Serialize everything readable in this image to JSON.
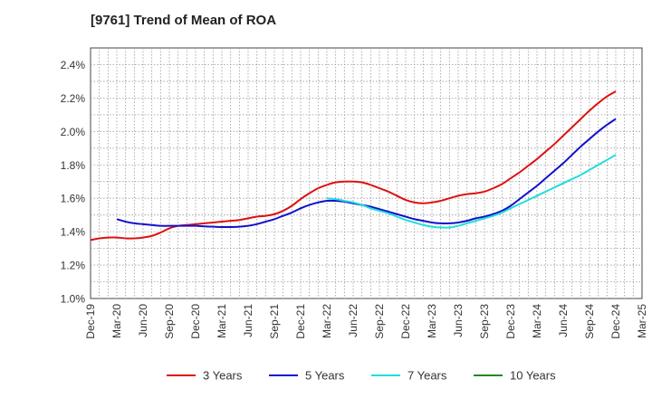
{
  "chart_data": {
    "type": "line",
    "title": "[9761]  Trend of Mean of ROA",
    "xlabel": "",
    "ylabel": "",
    "x_ticks": [
      "Dec-19",
      "Mar-20",
      "Jun-20",
      "Sep-20",
      "Dec-20",
      "Mar-21",
      "Jun-21",
      "Sep-21",
      "Dec-21",
      "Mar-22",
      "Jun-22",
      "Sep-22",
      "Dec-22",
      "Mar-23",
      "Jun-23",
      "Sep-23",
      "Dec-23",
      "Mar-24",
      "Jun-24",
      "Sep-24",
      "Dec-24",
      "Mar-25"
    ],
    "y_ticks": [
      "1.0%",
      "1.2%",
      "1.4%",
      "1.6%",
      "1.8%",
      "2.0%",
      "2.2%",
      "2.4%"
    ],
    "ylim": [
      1.0,
      2.5
    ],
    "grid": true,
    "legend_position": "bottom",
    "series": [
      {
        "name": "3 Years",
        "color": "#dd1111",
        "x": [
          "Dec-19",
          "Jan-20",
          "Feb-20",
          "Mar-20",
          "Apr-20",
          "May-20",
          "Jun-20",
          "Jul-20",
          "Aug-20",
          "Sep-20",
          "Oct-20",
          "Nov-20",
          "Dec-20",
          "Jan-21",
          "Feb-21",
          "Mar-21",
          "Apr-21",
          "May-21",
          "Jun-21",
          "Jul-21",
          "Aug-21",
          "Sep-21",
          "Oct-21",
          "Nov-21",
          "Dec-21",
          "Jan-22",
          "Feb-22",
          "Mar-22",
          "Apr-22",
          "May-22",
          "Jun-22",
          "Jul-22",
          "Aug-22",
          "Sep-22",
          "Oct-22",
          "Nov-22",
          "Dec-22",
          "Jan-23",
          "Feb-23",
          "Mar-23",
          "Apr-23",
          "May-23",
          "Jun-23",
          "Jul-23",
          "Aug-23",
          "Sep-23",
          "Oct-23",
          "Nov-23",
          "Dec-23",
          "Jan-24",
          "Feb-24",
          "Mar-24",
          "Apr-24",
          "May-24",
          "Jun-24",
          "Jul-24",
          "Aug-24",
          "Sep-24",
          "Oct-24",
          "Nov-24",
          "Dec-24"
        ],
        "values": [
          1.35,
          1.36,
          1.365,
          1.365,
          1.36,
          1.36,
          1.365,
          1.375,
          1.395,
          1.42,
          1.435,
          1.44,
          1.445,
          1.45,
          1.455,
          1.46,
          1.465,
          1.47,
          1.48,
          1.49,
          1.495,
          1.505,
          1.525,
          1.555,
          1.595,
          1.63,
          1.66,
          1.68,
          1.695,
          1.7,
          1.7,
          1.695,
          1.68,
          1.66,
          1.64,
          1.615,
          1.59,
          1.575,
          1.57,
          1.575,
          1.585,
          1.6,
          1.615,
          1.625,
          1.63,
          1.64,
          1.66,
          1.685,
          1.72,
          1.755,
          1.795,
          1.835,
          1.88,
          1.925,
          1.975,
          2.025,
          2.075,
          2.125,
          2.17,
          2.21,
          2.24
        ]
      },
      {
        "name": "5 Years",
        "color": "#1111cc",
        "x": [
          "Mar-20",
          "Apr-20",
          "May-20",
          "Jun-20",
          "Jul-20",
          "Aug-20",
          "Sep-20",
          "Oct-20",
          "Nov-20",
          "Dec-20",
          "Jan-21",
          "Feb-21",
          "Mar-21",
          "Apr-21",
          "May-21",
          "Jun-21",
          "Jul-21",
          "Aug-21",
          "Sep-21",
          "Oct-21",
          "Nov-21",
          "Dec-21",
          "Jan-22",
          "Feb-22",
          "Mar-22",
          "Apr-22",
          "May-22",
          "Jun-22",
          "Jul-22",
          "Aug-22",
          "Sep-22",
          "Oct-22",
          "Nov-22",
          "Dec-22",
          "Jan-23",
          "Feb-23",
          "Mar-23",
          "Apr-23",
          "May-23",
          "Jun-23",
          "Jul-23",
          "Aug-23",
          "Sep-23",
          "Oct-23",
          "Nov-23",
          "Dec-23",
          "Jan-24",
          "Feb-24",
          "Mar-24",
          "Apr-24",
          "May-24",
          "Jun-24",
          "Jul-24",
          "Aug-24",
          "Sep-24",
          "Oct-24",
          "Nov-24",
          "Dec-24"
        ],
        "values": [
          1.475,
          1.46,
          1.45,
          1.445,
          1.44,
          1.435,
          1.435,
          1.435,
          1.435,
          1.435,
          1.432,
          1.43,
          1.428,
          1.428,
          1.43,
          1.435,
          1.445,
          1.46,
          1.475,
          1.495,
          1.515,
          1.54,
          1.56,
          1.575,
          1.585,
          1.585,
          1.58,
          1.57,
          1.56,
          1.55,
          1.535,
          1.52,
          1.505,
          1.49,
          1.475,
          1.465,
          1.455,
          1.45,
          1.45,
          1.455,
          1.465,
          1.48,
          1.49,
          1.505,
          1.525,
          1.555,
          1.595,
          1.635,
          1.675,
          1.72,
          1.765,
          1.81,
          1.86,
          1.91,
          1.955,
          2.0,
          2.04,
          2.075
        ]
      },
      {
        "name": "7 Years",
        "color": "#22dddd",
        "x": [
          "Mar-22",
          "Apr-22",
          "May-22",
          "Jun-22",
          "Jul-22",
          "Aug-22",
          "Sep-22",
          "Oct-22",
          "Nov-22",
          "Dec-22",
          "Jan-23",
          "Feb-23",
          "Mar-23",
          "Apr-23",
          "May-23",
          "Jun-23",
          "Jul-23",
          "Aug-23",
          "Sep-23",
          "Oct-23",
          "Nov-23",
          "Dec-23",
          "Jan-24",
          "Feb-24",
          "Mar-24",
          "Apr-24",
          "May-24",
          "Jun-24",
          "Jul-24",
          "Aug-24",
          "Sep-24",
          "Oct-24",
          "Nov-24",
          "Dec-24"
        ],
        "values": [
          1.6,
          1.595,
          1.585,
          1.575,
          1.56,
          1.54,
          1.525,
          1.51,
          1.49,
          1.47,
          1.455,
          1.44,
          1.43,
          1.425,
          1.425,
          1.435,
          1.45,
          1.465,
          1.48,
          1.495,
          1.515,
          1.54,
          1.565,
          1.59,
          1.615,
          1.64,
          1.665,
          1.69,
          1.715,
          1.74,
          1.77,
          1.8,
          1.83,
          1.86
        ]
      },
      {
        "name": "10 Years",
        "color": "#228822",
        "x": [],
        "values": []
      }
    ]
  }
}
